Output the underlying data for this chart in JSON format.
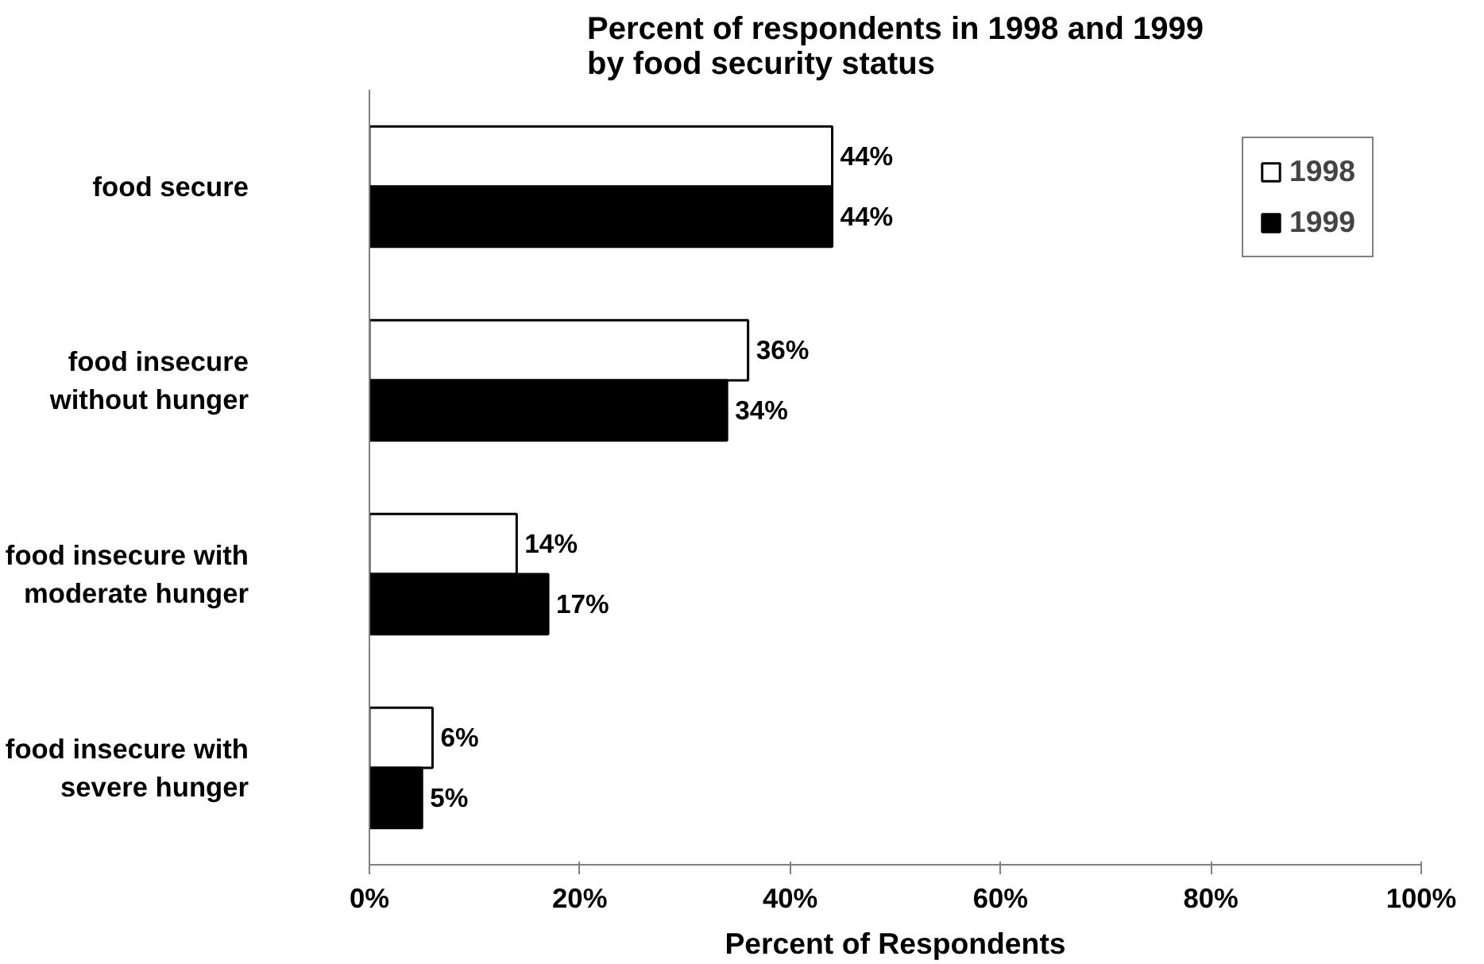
{
  "chart_data": {
    "type": "bar",
    "orientation": "horizontal",
    "title": "Percent of respondents in 1998 and 1999\nby food security status",
    "xlabel": "Percent of Respondents",
    "categories": [
      "food secure",
      "food insecure\nwithout hunger",
      "food insecure with\nmoderate hunger",
      "food insecure with\nsevere hunger"
    ],
    "series": [
      {
        "name": "1998",
        "color": "#ffffff",
        "values": [
          44,
          36,
          14,
          6
        ],
        "value_labels": [
          "44%",
          "36%",
          "14%",
          "6%"
        ]
      },
      {
        "name": "1999",
        "color": "#000000",
        "values": [
          44,
          34,
          17,
          5
        ],
        "value_labels": [
          "44%",
          "34%",
          "17%",
          "5%"
        ]
      }
    ],
    "xlim": [
      0,
      100
    ],
    "xticks": [
      {
        "value": 0,
        "label": "0%"
      },
      {
        "value": 20,
        "label": "20%"
      },
      {
        "value": 40,
        "label": "40%"
      },
      {
        "value": 60,
        "label": "60%"
      },
      {
        "value": 80,
        "label": "80%"
      },
      {
        "value": 100,
        "label": "100%"
      }
    ],
    "grid": false,
    "legend": "top right"
  }
}
